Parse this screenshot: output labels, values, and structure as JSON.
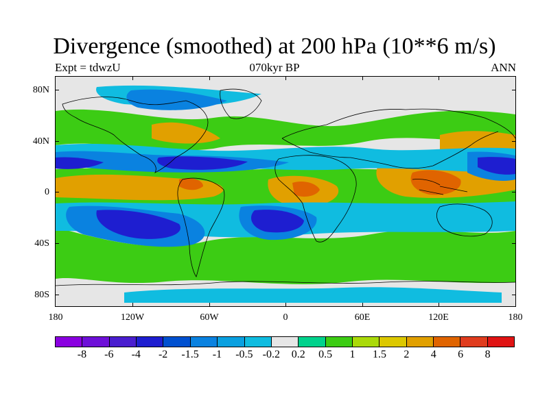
{
  "header": {
    "title": "Divergence (smoothed) at 200 hPa (10**6 m/s)",
    "left_label": "Expt = tdwzU",
    "center_label": "070kyr BP",
    "right_label": "ANN"
  },
  "axes": {
    "lat_labels": [
      "80N",
      "40N",
      "0",
      "40S",
      "80S"
    ],
    "lon_labels": [
      "180",
      "120W",
      "60W",
      "0",
      "60E",
      "120E",
      "180"
    ]
  },
  "colorbar": {
    "colors": [
      "#8a00e0",
      "#6e10d8",
      "#4a1ecf",
      "#1e1ed0",
      "#0050d0",
      "#0a82e0",
      "#0aa0e0",
      "#10bce0",
      "#e6e6e6",
      "#00d28c",
      "#3ccc14",
      "#aada0a",
      "#dcc800",
      "#e1a000",
      "#e06400",
      "#e03c1e",
      "#e01414"
    ],
    "labels": [
      "-8",
      "-6",
      "-4",
      "-2",
      "-1.5",
      "-1",
      "-0.5",
      "-0.2",
      "0.2",
      "0.5",
      "1",
      "1.5",
      "2",
      "4",
      "6",
      "8"
    ]
  },
  "map_colors": {
    "neutral": "#e6e6e6",
    "weak_pos": "#3ccc14",
    "mod_pos": "#e1a000",
    "strong_pos": "#e06400",
    "weak_neg": "#10bce0",
    "mod_neg": "#0a82e0",
    "strong_neg": "#1e1ed0",
    "coast": "#000000"
  }
}
